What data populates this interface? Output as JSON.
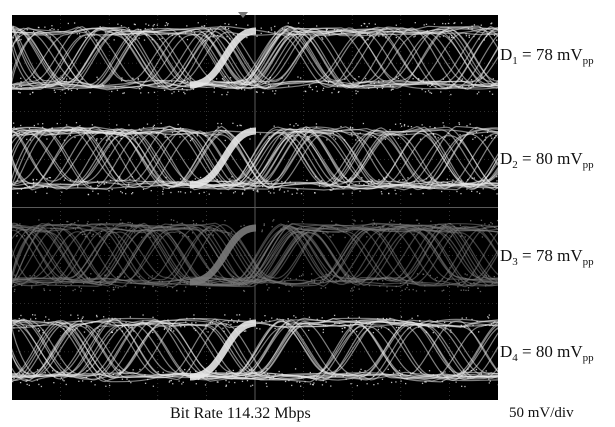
{
  "channels": [
    {
      "letter": "D",
      "sub": "1",
      "rest": " = 78 mV",
      "unit_sub": "pp",
      "tone": "#e8e8e8"
    },
    {
      "letter": "D",
      "sub": "2",
      "rest": " = 80 mV",
      "unit_sub": "pp",
      "tone": "#e8e8e8"
    },
    {
      "letter": "D",
      "sub": "3",
      "rest": " = 78 mV",
      "unit_sub": "pp",
      "tone": "#7a7a7a"
    },
    {
      "letter": "D",
      "sub": "4",
      "rest": " = 80 mV",
      "unit_sub": "pp",
      "tone": "#e8e8e8"
    }
  ],
  "footer": {
    "bit_rate": "Bit Rate 114.32 Mbps",
    "scale": "50 mV/div"
  },
  "colors": {
    "screen_bg": "#000000",
    "grid": "#5a5a5a",
    "trace_bright": "#e8e8e8",
    "trace_dim": "#7a7a7a"
  }
}
